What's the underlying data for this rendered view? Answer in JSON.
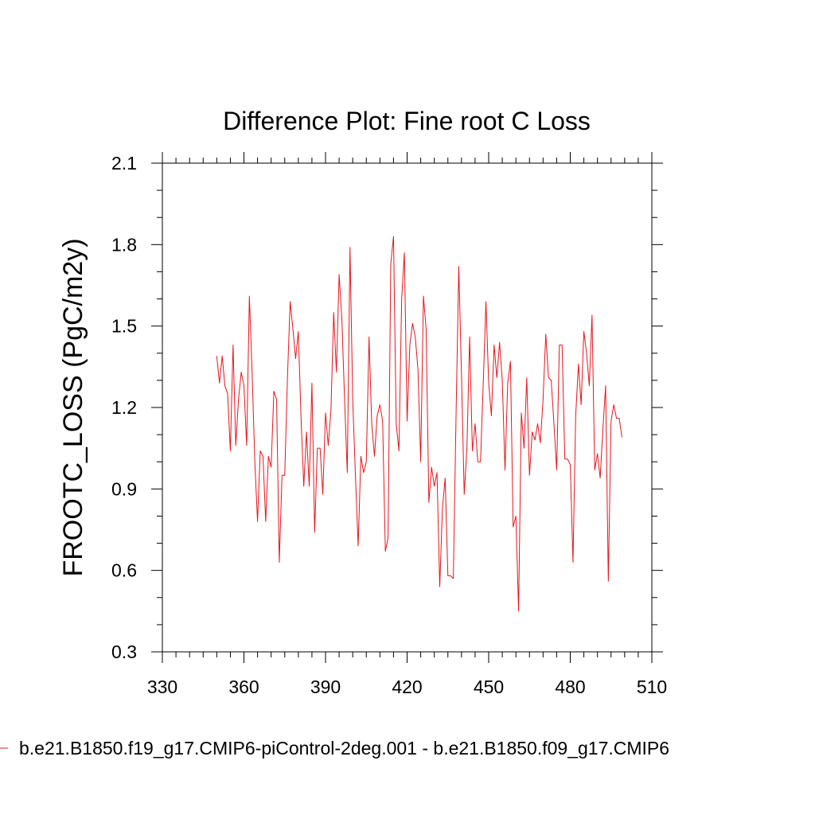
{
  "chart_data": {
    "type": "line",
    "title": "Difference Plot: Fine root C Loss",
    "xlabel": "",
    "ylabel": "FROOTC_LOSS  (PgC/m2y)",
    "xlim": [
      330,
      510
    ],
    "ylim": [
      0.3,
      2.1
    ],
    "x_ticks": [
      330,
      360,
      390,
      420,
      450,
      480,
      510
    ],
    "x_tick_labels": [
      "330",
      "360",
      "390",
      "420",
      "450",
      "480",
      "510"
    ],
    "y_ticks": [
      0.3,
      0.6,
      0.9,
      1.2,
      1.5,
      1.8,
      2.1
    ],
    "y_tick_labels": [
      "0.3",
      "0.6",
      "0.9",
      "1.2",
      "1.5",
      "1.8",
      "2.1"
    ],
    "grid": false,
    "legend_position": "bottom",
    "colors": {
      "series": "#e8141b",
      "axis": "#000000"
    },
    "series": [
      {
        "name": "b.e21.B1850.f19_g17.CMIP6-piControl-2deg.001 - b.e21.B1850.f09_g17.CMIP6",
        "x_start": 350,
        "x_step": 1,
        "values": [
          1.39,
          1.29,
          1.39,
          1.28,
          1.25,
          1.04,
          1.43,
          1.06,
          1.23,
          1.33,
          1.28,
          1.06,
          1.61,
          1.33,
          1.0,
          0.78,
          1.04,
          1.02,
          0.78,
          1.02,
          0.98,
          1.26,
          1.23,
          0.63,
          0.95,
          0.95,
          1.31,
          1.59,
          1.49,
          1.38,
          1.48,
          1.16,
          0.91,
          1.11,
          0.91,
          1.29,
          0.74,
          1.05,
          1.05,
          0.88,
          1.18,
          1.06,
          1.19,
          1.55,
          1.33,
          1.69,
          1.53,
          1.23,
          0.96,
          1.79,
          1.23,
          0.95,
          0.69,
          1.02,
          0.96,
          1.0,
          1.46,
          1.14,
          1.02,
          1.17,
          1.21,
          1.15,
          0.67,
          0.72,
          1.73,
          1.83,
          1.14,
          1.04,
          1.6,
          1.77,
          1.15,
          1.43,
          1.51,
          1.46,
          1.34,
          1.0,
          1.61,
          1.49,
          0.85,
          0.98,
          0.91,
          0.96,
          0.54,
          0.83,
          0.94,
          0.58,
          0.58,
          0.57,
          1.17,
          1.72,
          1.32,
          0.88,
          1.05,
          1.46,
          1.04,
          1.14,
          1.0,
          1.0,
          1.29,
          1.59,
          1.29,
          1.17,
          1.43,
          1.31,
          1.44,
          1.3,
          0.97,
          1.29,
          1.37,
          0.76,
          0.8,
          0.45,
          1.18,
          1.05,
          1.31,
          0.95,
          1.11,
          1.08,
          1.14,
          1.07,
          1.23,
          1.47,
          1.31,
          1.3,
          1.14,
          0.97,
          1.43,
          1.43,
          1.01,
          1.01,
          0.99,
          0.63,
          1.17,
          1.36,
          1.21,
          1.48,
          1.4,
          1.28,
          1.54,
          0.97,
          1.03,
          0.94,
          1.12,
          1.28,
          0.56,
          1.15,
          1.21,
          1.16,
          1.16,
          1.09
        ]
      }
    ]
  }
}
